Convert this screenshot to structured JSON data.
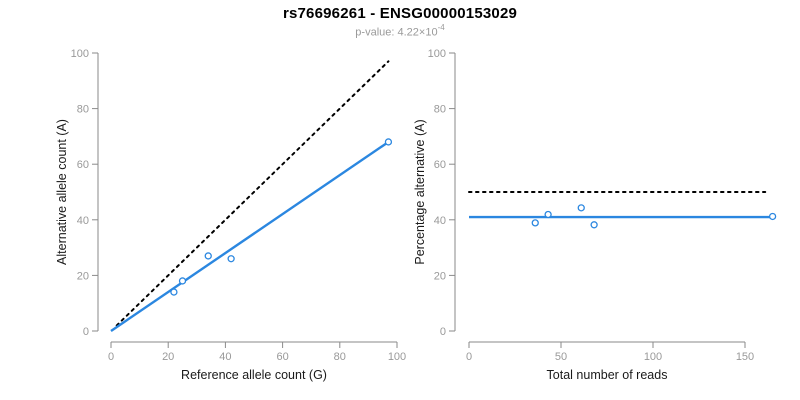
{
  "header": {
    "title": "rs76696261 - ENSG00000153029",
    "subtitle_prefix": "p-value: 4.22×10",
    "subtitle_exponent": "-4"
  },
  "colors": {
    "accent_blue": "#2b87e0",
    "axis_gray": "#8a8a8a",
    "tick_label_gray": "#999999",
    "label_black": "#1a1a1a",
    "identity_black": "#000000"
  },
  "chart_data": [
    {
      "type": "scatter",
      "name": "allele-counts",
      "title": "rs76696261 - ENSG00000153029",
      "xlabel": "Reference allele count (G)",
      "ylabel": "Alternative allele count (A)",
      "xlim": [
        0,
        100
      ],
      "ylim": [
        0,
        100
      ],
      "xticks": [
        0,
        20,
        40,
        60,
        80,
        100
      ],
      "yticks": [
        0,
        20,
        40,
        60,
        80,
        100
      ],
      "grid": false,
      "points": [
        [
          22,
          14
        ],
        [
          25,
          18
        ],
        [
          34,
          27
        ],
        [
          42,
          26
        ],
        [
          97,
          68
        ]
      ],
      "lines": [
        {
          "name": "identity-line",
          "style": "dotted",
          "color": "#000000",
          "from": [
            2,
            2
          ],
          "to": [
            97,
            97
          ]
        },
        {
          "name": "regression-line",
          "style": "solid",
          "color": "#2b87e0",
          "from": [
            0,
            0
          ],
          "to": [
            97,
            68
          ]
        }
      ]
    },
    {
      "type": "scatter",
      "name": "percentage-vs-reads",
      "title": "",
      "xlabel": "Total number of reads",
      "ylabel": "Percentage alternative (A)",
      "xlim": [
        0,
        165
      ],
      "ylim": [
        0,
        100
      ],
      "xticks": [
        0,
        50,
        100,
        150
      ],
      "yticks": [
        0,
        20,
        40,
        60,
        80,
        100
      ],
      "grid": false,
      "points": [
        [
          36,
          38.9
        ],
        [
          43,
          41.9
        ],
        [
          61,
          44.3
        ],
        [
          68,
          38.2
        ],
        [
          165,
          41.2
        ]
      ],
      "lines": [
        {
          "name": "expected-50-percent-line",
          "style": "dotted",
          "color": "#000000",
          "from": [
            0,
            50
          ],
          "to": [
            161,
            50
          ]
        },
        {
          "name": "mean-percentage-line",
          "style": "solid",
          "color": "#2b87e0",
          "from": [
            0,
            41
          ],
          "to": [
            165,
            41
          ]
        }
      ]
    }
  ]
}
